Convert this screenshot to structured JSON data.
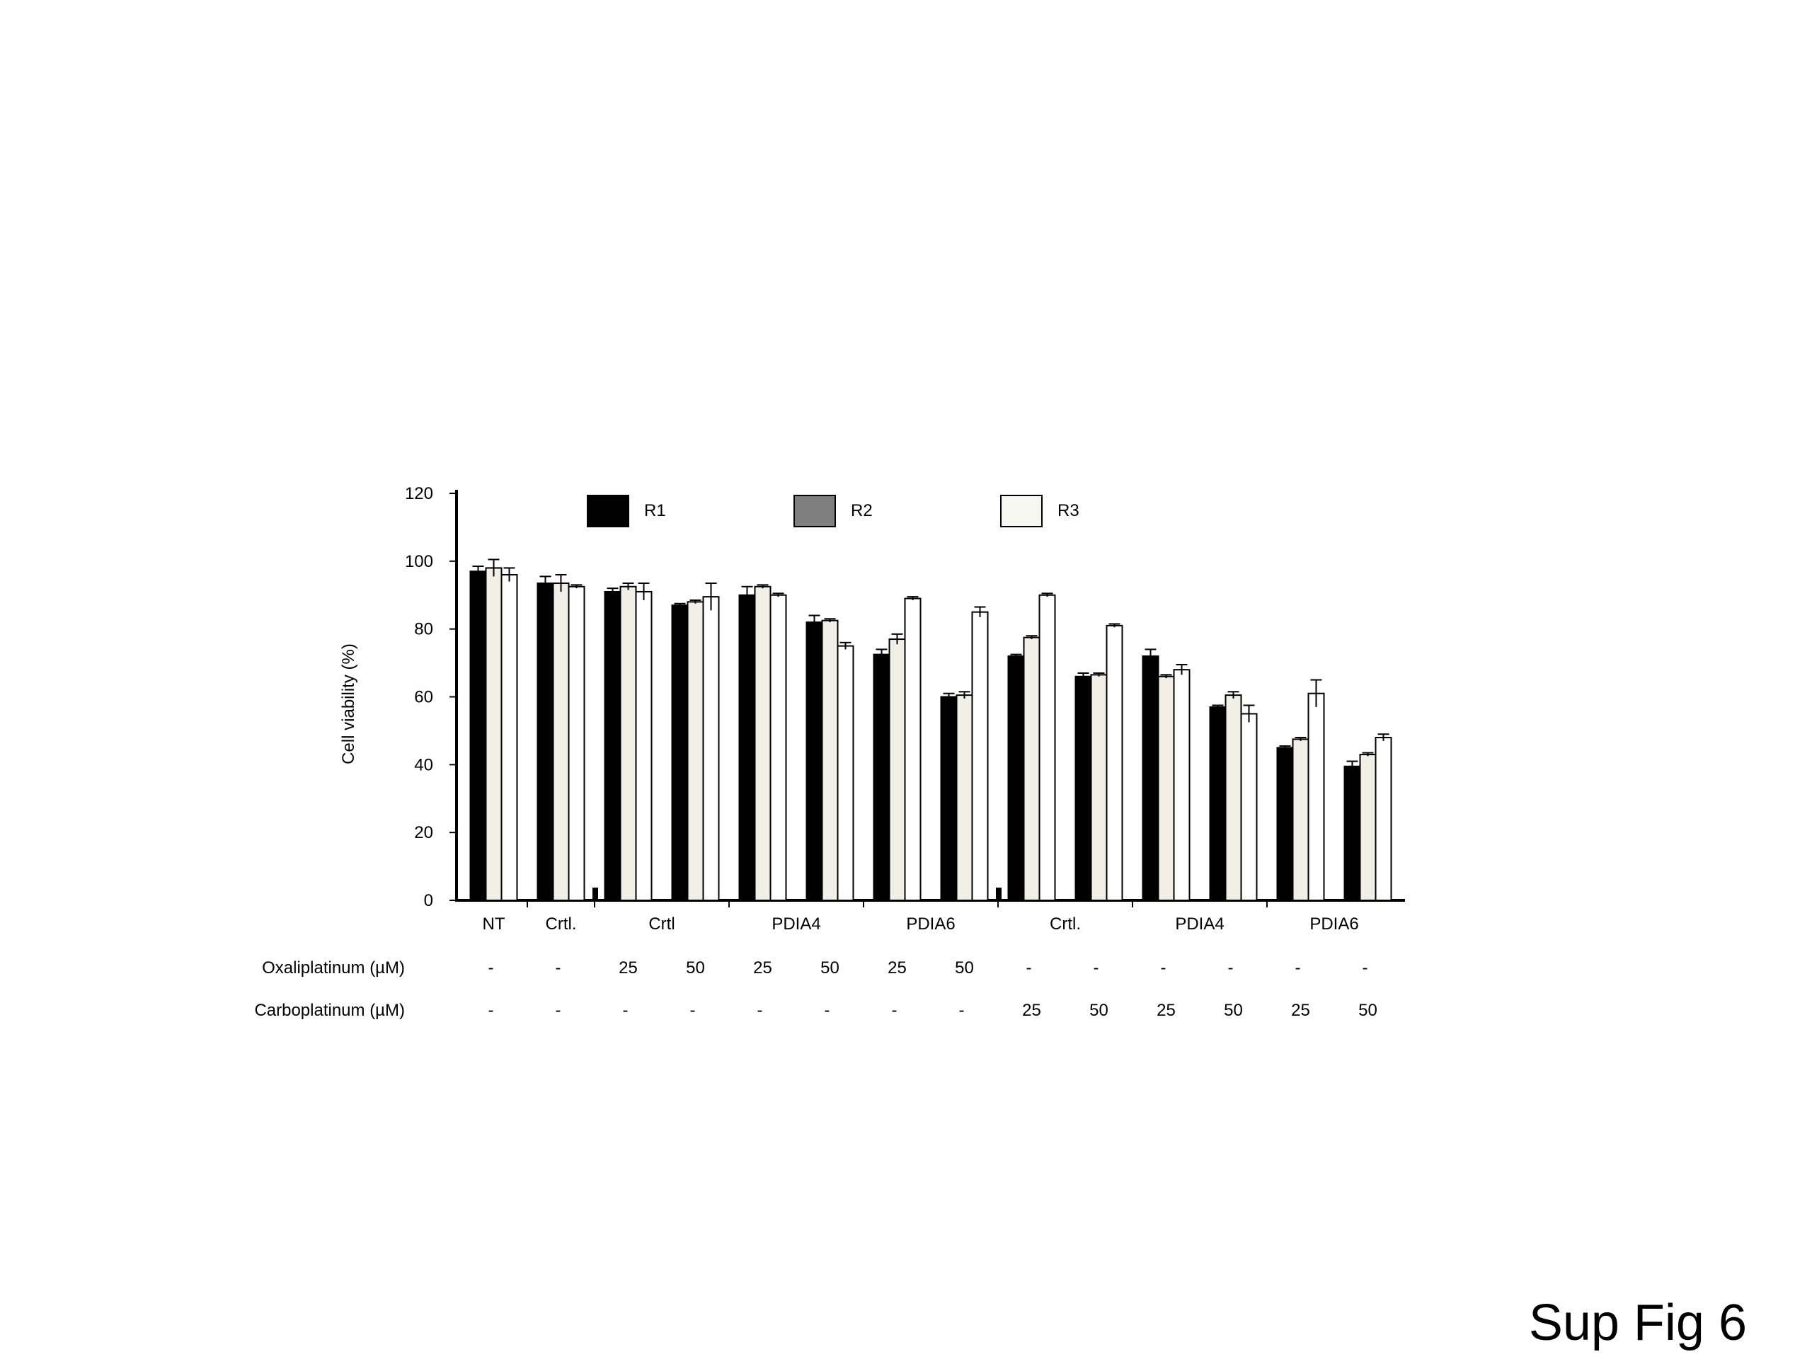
{
  "figure_label": "Sup Fig 6",
  "colors": {
    "R1": "#000000",
    "R2": "#f1efe6",
    "R3": "#ffffff",
    "R2_legend": "#7f7f7f",
    "R3_legend": "#f7f7f2"
  },
  "chart_data": {
    "type": "bar",
    "title": "",
    "ylabel": "Cell viability (%)",
    "xlabel": "",
    "ylim": [
      0,
      120
    ],
    "yticks": [
      "0",
      "20",
      "40",
      "60",
      "80",
      "100",
      "120"
    ],
    "grid": false,
    "legend": {
      "placement": "top",
      "entries": [
        "R1",
        "R2",
        "R3"
      ]
    },
    "groups": [
      {
        "label": "NT",
        "span": 1
      },
      {
        "label": "Crtl.",
        "span": 1
      },
      {
        "label": "Crtl",
        "span": 2
      },
      {
        "label": "PDIA4",
        "span": 2
      },
      {
        "label": "PDIA6",
        "span": 2
      },
      {
        "label": "Crtl.",
        "span": 2
      },
      {
        "label": "PDIA4",
        "span": 2
      },
      {
        "label": "PDIA6",
        "span": 2
      }
    ],
    "treatment_rows": [
      {
        "label": "Oxaliplatinum (µM)",
        "values": [
          "-",
          "-",
          "25",
          "50",
          "25",
          "50",
          "25",
          "50",
          "-",
          "-",
          "-",
          "-",
          "-",
          "-"
        ]
      },
      {
        "label": "Carboplatinum (µM)",
        "values": [
          "-",
          "-",
          "-",
          "-",
          "-",
          "-",
          "-",
          "-",
          "25",
          "50",
          "25",
          "50",
          "25",
          "50"
        ]
      }
    ],
    "series": [
      {
        "name": "R1",
        "values": [
          97,
          93.5,
          91,
          87,
          90,
          82,
          72.5,
          60,
          72,
          66,
          72,
          57,
          45,
          39.5
        ],
        "errors": [
          1.5,
          2,
          1,
          0.5,
          2.5,
          2,
          1.5,
          1,
          0.5,
          1,
          2,
          0.5,
          0.5,
          1.5
        ]
      },
      {
        "name": "R2",
        "values": [
          98,
          93.5,
          92.5,
          88,
          92.5,
          82.5,
          77,
          60.5,
          77.5,
          66.5,
          66,
          60.5,
          47.5,
          43
        ],
        "errors": [
          2.5,
          2.5,
          1,
          0.5,
          0.5,
          0.5,
          1.5,
          1,
          0.5,
          0.5,
          0.5,
          1,
          0.5,
          0.5
        ]
      },
      {
        "name": "R3",
        "values": [
          96,
          92.5,
          91,
          89.5,
          90,
          75,
          89,
          85,
          90,
          81,
          68,
          55,
          61,
          48
        ],
        "errors": [
          2,
          0.5,
          2.5,
          4,
          0.5,
          1,
          0.5,
          1.5,
          0.5,
          0.5,
          1.5,
          2.5,
          4,
          1
        ]
      }
    ]
  }
}
